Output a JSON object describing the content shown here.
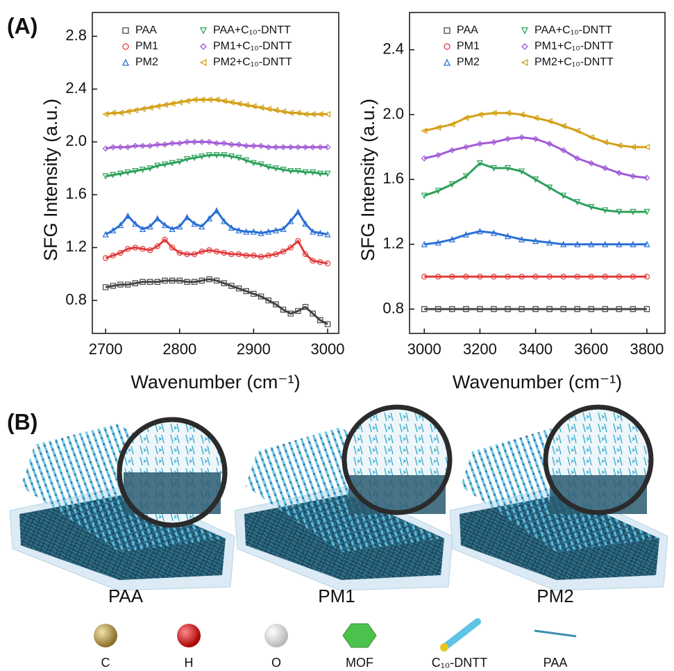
{
  "panel_labels": [
    "(A)",
    "(B)"
  ],
  "chart_data": [
    {
      "type": "scatter-line",
      "xlabel": "Wavenumber (cm⁻¹)",
      "ylabel": "SFG Intensity (a.u.)",
      "legend": "upper left",
      "xlim": [
        2682,
        3015
      ],
      "ylim": [
        0.55,
        2.98
      ],
      "xticks": [
        2700,
        2800,
        2900,
        3000
      ],
      "yticks": [
        0.8,
        1.2,
        1.6,
        {
          "value": 2,
          "label": "2.0"
        },
        2.4,
        2.8
      ],
      "x": [
        2700,
        2710,
        2720,
        2730,
        2740,
        2750,
        2760,
        2770,
        2780,
        2790,
        2800,
        2810,
        2820,
        2830,
        2840,
        2850,
        2860,
        2870,
        2880,
        2890,
        2900,
        2910,
        2920,
        2930,
        2940,
        2950,
        2960,
        2970,
        2980,
        2990,
        3000
      ],
      "series": [
        {
          "name": "PAA",
          "color": "#444444",
          "marker": "square",
          "values": [
            0.9,
            0.91,
            0.92,
            0.92,
            0.93,
            0.94,
            0.94,
            0.94,
            0.95,
            0.95,
            0.95,
            0.94,
            0.94,
            0.95,
            0.96,
            0.95,
            0.93,
            0.91,
            0.89,
            0.87,
            0.85,
            0.83,
            0.8,
            0.77,
            0.73,
            0.7,
            0.72,
            0.75,
            0.7,
            0.65,
            0.62
          ]
        },
        {
          "name": "PM1",
          "color": "#e23b3b",
          "marker": "circle",
          "values": [
            1.12,
            1.14,
            1.16,
            1.19,
            1.2,
            1.19,
            1.18,
            1.21,
            1.26,
            1.2,
            1.16,
            1.15,
            1.15,
            1.17,
            1.18,
            1.17,
            1.16,
            1.15,
            1.15,
            1.14,
            1.14,
            1.13,
            1.14,
            1.15,
            1.17,
            1.2,
            1.25,
            1.15,
            1.1,
            1.09,
            1.08
          ]
        },
        {
          "name": "PM2",
          "color": "#2a6fd6",
          "marker": "triangle-up",
          "values": [
            1.3,
            1.33,
            1.37,
            1.44,
            1.38,
            1.34,
            1.36,
            1.42,
            1.37,
            1.34,
            1.36,
            1.43,
            1.38,
            1.36,
            1.42,
            1.48,
            1.4,
            1.35,
            1.33,
            1.32,
            1.32,
            1.31,
            1.32,
            1.33,
            1.34,
            1.4,
            1.47,
            1.38,
            1.32,
            1.31,
            1.3
          ]
        },
        {
          "name": "PAA+C₁₀-DNTT",
          "color": "#2ca05a",
          "marker": "triangle-down",
          "values": [
            1.74,
            1.75,
            1.76,
            1.77,
            1.78,
            1.79,
            1.8,
            1.82,
            1.83,
            1.84,
            1.85,
            1.87,
            1.88,
            1.89,
            1.9,
            1.9,
            1.9,
            1.89,
            1.88,
            1.86,
            1.84,
            1.83,
            1.81,
            1.8,
            1.79,
            1.78,
            1.78,
            1.77,
            1.77,
            1.76,
            1.76
          ]
        },
        {
          "name": "PM1+C₁₀-DNTT",
          "color": "#a05ad6",
          "marker": "diamond",
          "values": [
            1.95,
            1.96,
            1.96,
            1.96,
            1.97,
            1.97,
            1.97,
            1.98,
            1.98,
            1.99,
            1.99,
            2.0,
            2.0,
            2.0,
            2.0,
            1.99,
            1.99,
            1.98,
            1.98,
            1.97,
            1.97,
            1.97,
            1.96,
            1.96,
            1.96,
            1.96,
            1.96,
            1.96,
            1.96,
            1.96,
            1.96
          ]
        },
        {
          "name": "PM2+C₁₀-DNTT",
          "color": "#d4a017",
          "marker": "triangle-left",
          "values": [
            2.21,
            2.22,
            2.22,
            2.23,
            2.24,
            2.25,
            2.26,
            2.27,
            2.28,
            2.29,
            2.3,
            2.31,
            2.32,
            2.32,
            2.32,
            2.32,
            2.31,
            2.3,
            2.29,
            2.28,
            2.27,
            2.26,
            2.25,
            2.24,
            2.23,
            2.22,
            2.22,
            2.21,
            2.21,
            2.21,
            2.21
          ]
        }
      ]
    },
    {
      "type": "scatter-line",
      "xlabel": "Wavenumber (cm⁻¹)",
      "ylabel": "SFG Intensity (a.u.)",
      "legend": "upper center",
      "xlim": [
        2947,
        3865
      ],
      "ylim": [
        0.65,
        2.63
      ],
      "xticks": [
        3000,
        3200,
        3400,
        3600,
        3800
      ],
      "yticks": [
        0.8,
        1.2,
        1.6,
        {
          "value": 2,
          "label": "2.0"
        },
        2.4
      ],
      "x": [
        3000,
        3050,
        3100,
        3150,
        3200,
        3250,
        3300,
        3350,
        3400,
        3450,
        3500,
        3550,
        3600,
        3650,
        3700,
        3750,
        3800
      ],
      "series": [
        {
          "name": "PAA",
          "color": "#444444",
          "marker": "square",
          "values": [
            0.8,
            0.8,
            0.8,
            0.8,
            0.8,
            0.8,
            0.8,
            0.8,
            0.8,
            0.8,
            0.8,
            0.8,
            0.8,
            0.8,
            0.8,
            0.8,
            0.8
          ]
        },
        {
          "name": "PM1",
          "color": "#e23b3b",
          "marker": "circle",
          "values": [
            1.0,
            1.0,
            1.0,
            1.0,
            1.0,
            1.0,
            1.0,
            1.0,
            1.0,
            1.0,
            1.0,
            1.0,
            1.0,
            1.0,
            1.0,
            1.0,
            1.0
          ]
        },
        {
          "name": "PM2",
          "color": "#2a6fd6",
          "marker": "triangle-up",
          "values": [
            1.2,
            1.21,
            1.23,
            1.26,
            1.28,
            1.27,
            1.25,
            1.23,
            1.22,
            1.21,
            1.2,
            1.2,
            1.2,
            1.2,
            1.2,
            1.2,
            1.2
          ]
        },
        {
          "name": "PAA+C₁₀-DNTT",
          "color": "#2ca05a",
          "marker": "triangle-down",
          "values": [
            1.5,
            1.53,
            1.57,
            1.62,
            1.7,
            1.67,
            1.67,
            1.65,
            1.6,
            1.55,
            1.5,
            1.46,
            1.43,
            1.41,
            1.4,
            1.4,
            1.4
          ]
        },
        {
          "name": "PM1+C₁₀-DNTT",
          "color": "#a05ad6",
          "marker": "diamond",
          "values": [
            1.73,
            1.75,
            1.78,
            1.8,
            1.82,
            1.83,
            1.85,
            1.86,
            1.85,
            1.82,
            1.78,
            1.73,
            1.7,
            1.67,
            1.64,
            1.62,
            1.61
          ]
        },
        {
          "name": "PM2+C₁₀-DNTT",
          "color": "#d4a017",
          "marker": "triangle-left",
          "values": [
            1.9,
            1.92,
            1.94,
            1.98,
            2.0,
            2.01,
            2.01,
            2.0,
            1.98,
            1.96,
            1.93,
            1.9,
            1.86,
            1.83,
            1.81,
            1.8,
            1.8
          ]
        }
      ]
    }
  ],
  "illustration": {
    "labels": [
      "PAA",
      "PM1",
      "PM2"
    ]
  },
  "key": {
    "items": [
      "C",
      "H",
      "O",
      "MOF",
      "C₁₀-DNTT",
      "PAA"
    ]
  }
}
